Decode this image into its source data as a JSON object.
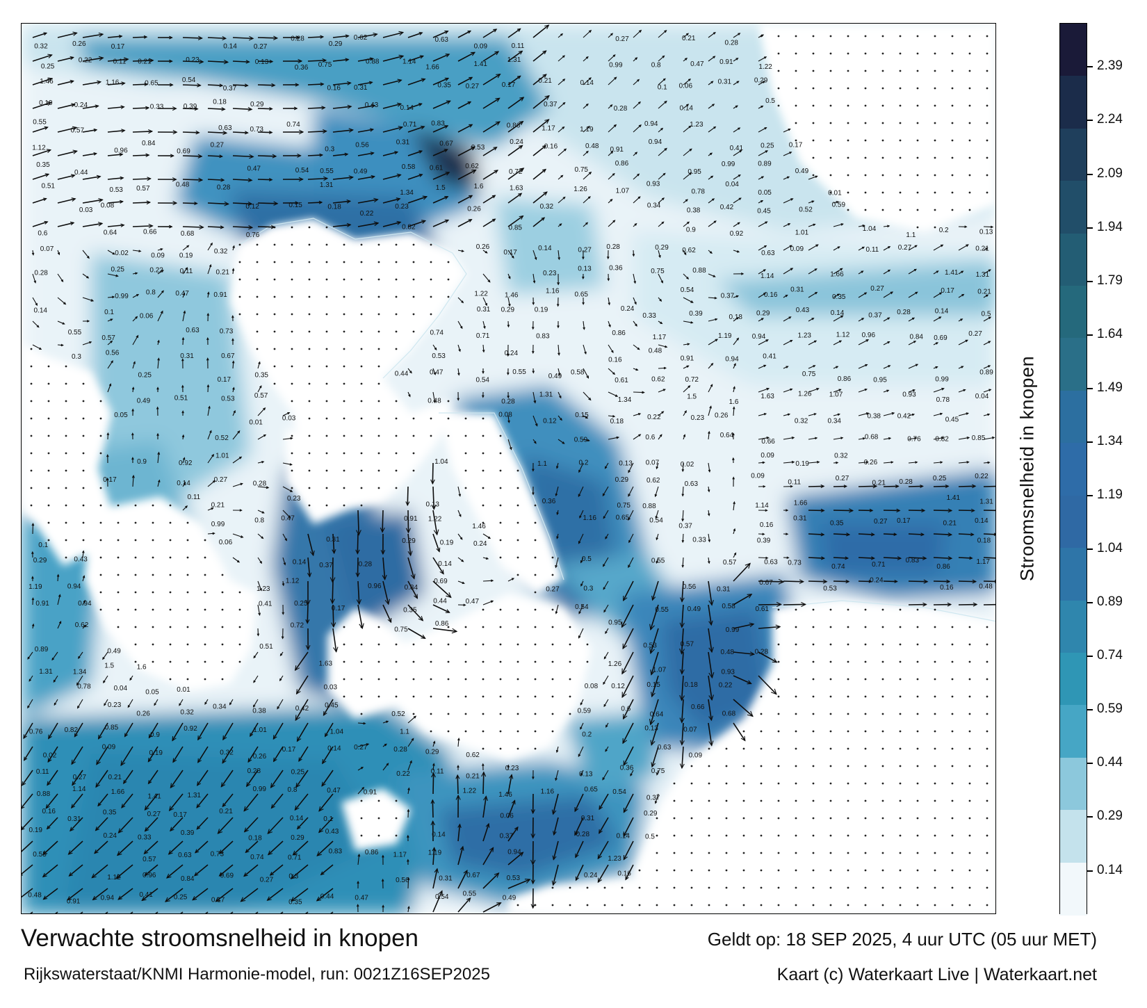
{
  "map": {
    "title": "Verwachte stroomsnelheid in knopen",
    "valid_time": "Geldt op: 18 SEP 2025, 4 uur UTC (05 uur MET)",
    "model_run": "Rijkswaterstaat/KNMI Harmonie-model, run: 0021Z16SEP2025",
    "credit": "Kaart (c) Waterkaart Live | Waterkaart.net"
  },
  "colorbar": {
    "title": "Stroomsnelheid in knopen",
    "ticks": [
      "2.39",
      "2.24",
      "2.09",
      "1.94",
      "1.79",
      "1.64",
      "1.49",
      "1.34",
      "1.19",
      "1.04",
      "0.89",
      "0.74",
      "0.59",
      "0.44",
      "0.29",
      "0.14"
    ],
    "colors": [
      "#1a1a38",
      "#1b2c4a",
      "#1f3f5c",
      "#214e69",
      "#235d74",
      "#25697c",
      "#2a6f88",
      "#2c6fa0",
      "#2e6ca8",
      "#2f69a4",
      "#2e75a8",
      "#2f86ad",
      "#2f96b5",
      "#46a6c5",
      "#8cc8dc",
      "#c4e2ec",
      "#f2f8fb"
    ]
  },
  "speed_labels": [
    {
      "v": "0.32"
    },
    {
      "v": "0.26"
    },
    {
      "v": "0.17"
    },
    {
      "v": "0.14"
    },
    {
      "v": "0.27"
    },
    {
      "v": "0.28"
    },
    {
      "v": "0.29"
    },
    {
      "v": "0.62"
    },
    {
      "v": "0.63"
    },
    {
      "v": "0.09"
    },
    {
      "v": "0.11"
    },
    {
      "v": "0.27"
    },
    {
      "v": "0.21"
    },
    {
      "v": "0.28"
    },
    {
      "v": "0.25"
    },
    {
      "v": "0.22"
    },
    {
      "v": "0.11"
    },
    {
      "v": "0.21"
    },
    {
      "v": "0.23"
    },
    {
      "v": "0.13"
    },
    {
      "v": "0.36"
    },
    {
      "v": "0.75"
    },
    {
      "v": "0.88"
    },
    {
      "v": "1.14"
    },
    {
      "v": "1.66"
    },
    {
      "v": "1.41"
    },
    {
      "v": "1.31"
    },
    {
      "v": "0.99"
    },
    {
      "v": "0.8"
    },
    {
      "v": "0.47"
    },
    {
      "v": "0.91"
    },
    {
      "v": "1.22"
    },
    {
      "v": "1.46"
    },
    {
      "v": "1.16"
    },
    {
      "v": "0.65"
    },
    {
      "v": "0.54"
    },
    {
      "v": "0.37"
    },
    {
      "v": "0.16"
    },
    {
      "v": "0.31"
    },
    {
      "v": "0.35"
    },
    {
      "v": "0.27"
    },
    {
      "v": "0.17"
    },
    {
      "v": "0.21"
    },
    {
      "v": "0.14"
    },
    {
      "v": "0.1"
    },
    {
      "v": "0.06"
    },
    {
      "v": "0.31"
    },
    {
      "v": "0.29"
    },
    {
      "v": "0.19"
    },
    {
      "v": "0.24"
    },
    {
      "v": "0.33"
    },
    {
      "v": "0.39"
    },
    {
      "v": "0.18"
    },
    {
      "v": "0.29"
    },
    {
      "v": "0.43"
    },
    {
      "v": "0.14"
    },
    {
      "v": "0.37"
    },
    {
      "v": "0.28"
    },
    {
      "v": "0.14"
    },
    {
      "v": "0.5"
    },
    {
      "v": "0.55"
    },
    {
      "v": "0.57"
    },
    {
      "v": "0.63"
    },
    {
      "v": "0.73"
    },
    {
      "v": "0.74"
    },
    {
      "v": "0.71"
    },
    {
      "v": "0.83"
    },
    {
      "v": "0.86"
    },
    {
      "v": "1.17"
    },
    {
      "v": "1.19"
    },
    {
      "v": "0.94"
    },
    {
      "v": "1.23"
    },
    {
      "v": "1.12"
    },
    {
      "v": "0.96"
    },
    {
      "v": "0.84"
    },
    {
      "v": "0.69"
    },
    {
      "v": "0.27"
    },
    {
      "v": "0.3"
    },
    {
      "v": "0.56"
    },
    {
      "v": "0.31"
    },
    {
      "v": "0.67"
    },
    {
      "v": "0.53"
    },
    {
      "v": "0.24"
    },
    {
      "v": "0.16"
    },
    {
      "v": "0.48"
    },
    {
      "v": "0.91"
    },
    {
      "v": "0.94"
    },
    {
      "v": "0.41"
    },
    {
      "v": "0.25"
    },
    {
      "v": "0.17"
    },
    {
      "v": "0.35"
    },
    {
      "v": "0.44"
    },
    {
      "v": "0.47"
    },
    {
      "v": "0.54"
    },
    {
      "v": "0.55"
    },
    {
      "v": "0.49"
    },
    {
      "v": "0.58"
    },
    {
      "v": "0.61"
    },
    {
      "v": "0.62"
    },
    {
      "v": "0.72"
    },
    {
      "v": "0.75"
    },
    {
      "v": "0.86"
    },
    {
      "v": "0.95"
    },
    {
      "v": "0.99"
    },
    {
      "v": "0.89"
    },
    {
      "v": "0.49"
    },
    {
      "v": "0.51"
    },
    {
      "v": "0.53"
    },
    {
      "v": "0.57"
    },
    {
      "v": "0.48"
    },
    {
      "v": "0.28"
    },
    {
      "v": "1.31"
    },
    {
      "v": "1.34"
    },
    {
      "v": "1.5"
    },
    {
      "v": "1.6"
    },
    {
      "v": "1.63"
    },
    {
      "v": "1.26"
    },
    {
      "v": "1.07"
    },
    {
      "v": "0.93"
    },
    {
      "v": "0.78"
    },
    {
      "v": "0.04"
    },
    {
      "v": "0.05"
    },
    {
      "v": "0.01"
    },
    {
      "v": "0.03"
    },
    {
      "v": "0.08"
    },
    {
      "v": "0.12"
    },
    {
      "v": "0.15"
    },
    {
      "v": "0.18"
    },
    {
      "v": "0.22"
    },
    {
      "v": "0.23"
    },
    {
      "v": "0.26"
    },
    {
      "v": "0.32"
    },
    {
      "v": "0.34"
    },
    {
      "v": "0.38"
    },
    {
      "v": "0.42"
    },
    {
      "v": "0.45"
    },
    {
      "v": "0.52"
    },
    {
      "v": "0.59"
    },
    {
      "v": "0.6"
    },
    {
      "v": "0.64"
    },
    {
      "v": "0.66"
    },
    {
      "v": "0.68"
    },
    {
      "v": "0.76"
    },
    {
      "v": "0.82"
    },
    {
      "v": "0.85"
    },
    {
      "v": "0.9"
    },
    {
      "v": "0.92"
    },
    {
      "v": "1.01"
    },
    {
      "v": "1.04"
    },
    {
      "v": "1.1"
    },
    {
      "v": "0.2"
    },
    {
      "v": "0.13"
    },
    {
      "v": "0.07"
    },
    {
      "v": "0.02"
    },
    {
      "v": "0.09"
    },
    {
      "v": "0.19"
    }
  ]
}
